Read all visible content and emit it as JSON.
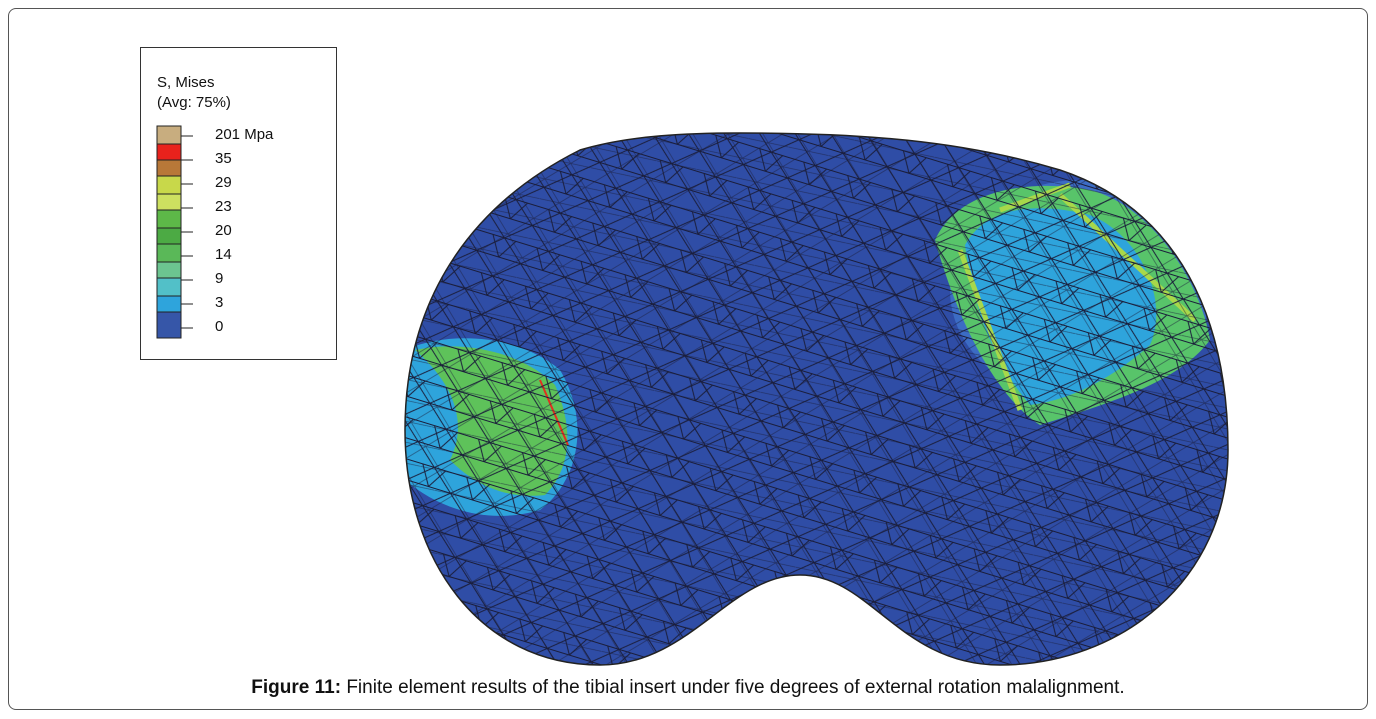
{
  "legend": {
    "title": "S, Mises",
    "subtitle": "(Avg: 75%)",
    "labels": [
      "201 Mpa",
      "35",
      "29",
      "23",
      "20",
      "14",
      "9",
      "3",
      "0"
    ]
  },
  "caption": {
    "label": "Figure 11:",
    "text": "Finite element results of the tibial insert under five degrees of external rotation malalignment."
  }
}
